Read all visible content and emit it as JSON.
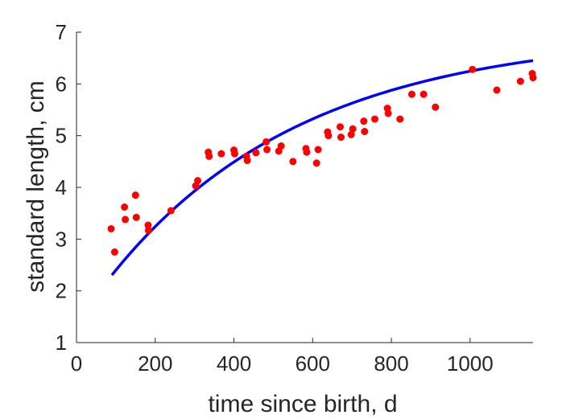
{
  "chart_data": {
    "type": "scatter",
    "title": "",
    "xlabel": "time since birth, d",
    "ylabel": "standard length, cm",
    "xlim": [
      0,
      1160
    ],
    "ylim": [
      1,
      7
    ],
    "xticks": [
      "0",
      "200",
      "400",
      "600",
      "800",
      "1000"
    ],
    "yticks": [
      "1",
      "2",
      "3",
      "4",
      "5",
      "6",
      "7"
    ],
    "grid": false,
    "legend": "none",
    "series": [
      {
        "kind": "scatter",
        "color": "#ff0000",
        "x": [
          88,
          97,
          122,
          124,
          150,
          152,
          182,
          183,
          240,
          303,
          308,
          335,
          337,
          368,
          400,
          402,
          432,
          434,
          456,
          482,
          484,
          514,
          520,
          550,
          583,
          585,
          610,
          614,
          638,
          640,
          670,
          672,
          698,
          702,
          730,
          732,
          758,
          790,
          792,
          822,
          852,
          882,
          912,
          1006,
          1068,
          1128,
          1158,
          1160
        ],
        "y": [
          3.2,
          2.75,
          3.62,
          3.38,
          3.85,
          3.42,
          3.27,
          3.17,
          3.55,
          4.03,
          4.13,
          4.68,
          4.6,
          4.65,
          4.72,
          4.65,
          4.6,
          4.52,
          4.67,
          4.88,
          4.73,
          4.7,
          4.8,
          4.5,
          4.75,
          4.68,
          4.47,
          4.73,
          5.07,
          5.0,
          5.17,
          4.97,
          5.02,
          5.13,
          5.28,
          5.08,
          5.32,
          5.53,
          5.43,
          5.32,
          5.8,
          5.8,
          5.55,
          6.28,
          5.88,
          6.05,
          6.2,
          6.12
        ]
      },
      {
        "kind": "line",
        "color": "#0000ff",
        "model": "von Bertalanffy",
        "L_inf": 6.983,
        "k": 0.00203,
        "t0": -107.4,
        "x_range": [
          90,
          1160
        ]
      }
    ]
  }
}
